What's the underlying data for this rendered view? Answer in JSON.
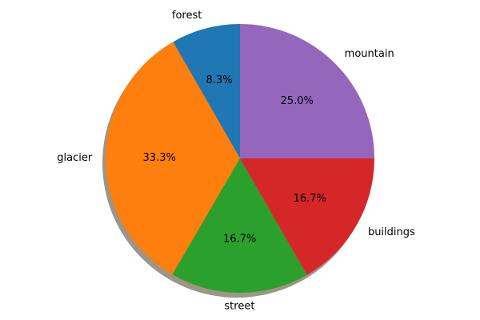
{
  "chart_data": {
    "type": "pie",
    "title": "",
    "categories": [
      "mountain",
      "forest",
      "glacier",
      "street",
      "buildings"
    ],
    "values": [
      25.0,
      8.3,
      33.3,
      16.7,
      16.7
    ],
    "percent_labels": [
      "25.0%",
      "8.3%",
      "33.3%",
      "16.7%",
      "16.7%"
    ],
    "colors": [
      "#9467bd",
      "#1f77b4",
      "#ff7f0e",
      "#2ca02c",
      "#d62728"
    ],
    "start_angle_deg": 0,
    "direction": "counterclockwise",
    "shadow": true,
    "shadow_color": "#8c8270",
    "legend": "none"
  }
}
